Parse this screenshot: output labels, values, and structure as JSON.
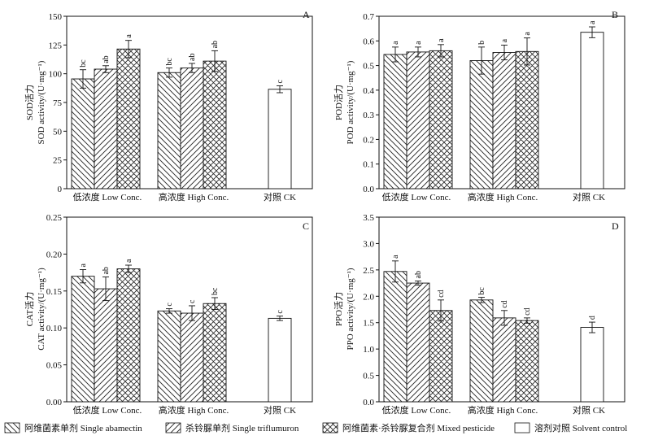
{
  "chart_data": [
    {
      "type": "bar",
      "panel_label": "A",
      "ylabel_cn": "SOD活力",
      "ylabel_en": "SOD activity/(U·mg⁻¹)",
      "ylim": [
        0,
        150
      ],
      "yticks": [
        "0",
        "25",
        "50",
        "75",
        "100",
        "125",
        "150"
      ],
      "categories": [
        "低浓度 Low Conc.",
        "高浓度 High Conc.",
        "对照 CK"
      ],
      "bars": [
        {
          "group": 0,
          "series": 0,
          "value": 95.5,
          "err": 8,
          "sig": "bc"
        },
        {
          "group": 0,
          "series": 1,
          "value": 104,
          "err": 3,
          "sig": "ab"
        },
        {
          "group": 0,
          "series": 2,
          "value": 121.5,
          "err": 7.5,
          "sig": "a"
        },
        {
          "group": 1,
          "series": 0,
          "value": 101,
          "err": 4,
          "sig": "bc"
        },
        {
          "group": 1,
          "series": 1,
          "value": 105,
          "err": 4,
          "sig": "ab"
        },
        {
          "group": 1,
          "series": 2,
          "value": 111,
          "err": 9,
          "sig": "ab"
        },
        {
          "group": 2,
          "series": 3,
          "value": 86.5,
          "err": 3,
          "sig": "c"
        }
      ]
    },
    {
      "type": "bar",
      "panel_label": "B",
      "ylabel_cn": "POD活力",
      "ylabel_en": "POD activity/(U·mg⁻¹)",
      "ylim": [
        0,
        0.7
      ],
      "yticks": [
        "0.0",
        "0.1",
        "0.2",
        "0.3",
        "0.4",
        "0.5",
        "0.6",
        "0.7"
      ],
      "categories": [
        "低浓度 Low Conc.",
        "高浓度 High Conc.",
        "对照 CK"
      ],
      "bars": [
        {
          "group": 0,
          "series": 0,
          "value": 0.545,
          "err": 0.03,
          "sig": "a"
        },
        {
          "group": 0,
          "series": 1,
          "value": 0.555,
          "err": 0.02,
          "sig": "a"
        },
        {
          "group": 0,
          "series": 2,
          "value": 0.56,
          "err": 0.025,
          "sig": "a"
        },
        {
          "group": 1,
          "series": 0,
          "value": 0.52,
          "err": 0.055,
          "sig": "b"
        },
        {
          "group": 1,
          "series": 1,
          "value": 0.553,
          "err": 0.03,
          "sig": "a"
        },
        {
          "group": 1,
          "series": 2,
          "value": 0.557,
          "err": 0.055,
          "sig": "a"
        },
        {
          "group": 2,
          "series": 3,
          "value": 0.635,
          "err": 0.022,
          "sig": "a"
        }
      ]
    },
    {
      "type": "bar",
      "panel_label": "C",
      "ylabel_cn": "CAT活力",
      "ylabel_en": "CAT activity/(U·mg⁻¹)",
      "ylim": [
        0,
        0.25
      ],
      "yticks": [
        "0.00",
        "0.05",
        "0.10",
        "0.15",
        "0.20",
        "0.25"
      ],
      "categories": [
        "低浓度 Low Conc.",
        "高浓度 High Conc.",
        "对照 CK"
      ],
      "bars": [
        {
          "group": 0,
          "series": 0,
          "value": 0.17,
          "err": 0.009,
          "sig": "a"
        },
        {
          "group": 0,
          "series": 1,
          "value": 0.153,
          "err": 0.016,
          "sig": "ab"
        },
        {
          "group": 0,
          "series": 2,
          "value": 0.18,
          "err": 0.005,
          "sig": "a"
        },
        {
          "group": 1,
          "series": 0,
          "value": 0.123,
          "err": 0.003,
          "sig": "c"
        },
        {
          "group": 1,
          "series": 1,
          "value": 0.12,
          "err": 0.01,
          "sig": "c"
        },
        {
          "group": 1,
          "series": 2,
          "value": 0.133,
          "err": 0.008,
          "sig": "bc"
        },
        {
          "group": 2,
          "series": 3,
          "value": 0.113,
          "err": 0.003,
          "sig": "c"
        }
      ]
    },
    {
      "type": "bar",
      "panel_label": "D",
      "ylabel_cn": "PPO活力",
      "ylabel_en": "PPO activity/(U·mg⁻¹)",
      "ylim": [
        0,
        3.5
      ],
      "yticks": [
        "0.0",
        "0.5",
        "1.0",
        "1.5",
        "2.0",
        "2.5",
        "3.0",
        "3.5"
      ],
      "categories": [
        "低浓度 Low Conc.",
        "高浓度 High Conc.",
        "对照 CK"
      ],
      "bars": [
        {
          "group": 0,
          "series": 0,
          "value": 2.47,
          "err": 0.2,
          "sig": "a"
        },
        {
          "group": 0,
          "series": 1,
          "value": 2.25,
          "err": 0.04,
          "sig": "ab"
        },
        {
          "group": 0,
          "series": 2,
          "value": 1.73,
          "err": 0.2,
          "sig": "cd"
        },
        {
          "group": 1,
          "series": 0,
          "value": 1.93,
          "err": 0.05,
          "sig": "bc"
        },
        {
          "group": 1,
          "series": 1,
          "value": 1.59,
          "err": 0.14,
          "sig": "cd"
        },
        {
          "group": 1,
          "series": 2,
          "value": 1.54,
          "err": 0.05,
          "sig": "cd"
        },
        {
          "group": 2,
          "series": 3,
          "value": 1.41,
          "err": 0.1,
          "sig": "d"
        }
      ]
    }
  ],
  "legend": [
    {
      "name": "阿维菌素单剂  Single abamectin",
      "pattern": "diag-down"
    },
    {
      "name": "杀铃脲单剂  Single triflumuron",
      "pattern": "diag-up"
    },
    {
      "name": "阿维菌素·杀铃脲复合剂  Mixed pesticide",
      "pattern": "cross"
    },
    {
      "name": "溶剂对照  Solvent control",
      "pattern": "none"
    }
  ],
  "colors": {
    "axis": "#111111",
    "bar_fill": "#ffffff",
    "hatch": "#222222"
  }
}
